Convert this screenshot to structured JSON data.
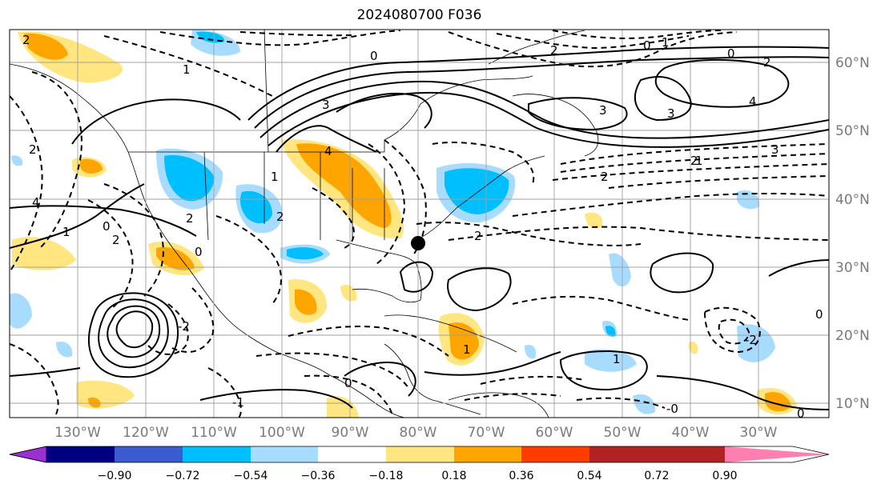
{
  "title": "2024080700 F036",
  "longitude_labels": [
    "130°W",
    "120°W",
    "110°W",
    "100°W",
    "90°W",
    "80°W",
    "70°W",
    "60°W",
    "50°W",
    "40°W",
    "30°W"
  ],
  "latitude_labels": [
    "60°N",
    "50°N",
    "40°N",
    "30°N",
    "20°N",
    "10°N"
  ],
  "colorbar": {
    "tick_labels": [
      "−0.90",
      "−0.72",
      "−0.54",
      "−0.36",
      "−0.18",
      "0.18",
      "0.36",
      "0.54",
      "0.72",
      "0.90"
    ],
    "colors": [
      "#9b30d0",
      "#000080",
      "#3b5bd0",
      "#00bfff",
      "#a8dcff",
      "#ffffff",
      "#ffe680",
      "#ffa500",
      "#ff3c00",
      "#b22222",
      "#ff80b0"
    ]
  },
  "contour_labels": [
    "2",
    "0",
    "1",
    "3",
    "2",
    "4",
    "3",
    "4",
    "3",
    "2",
    "3",
    "0",
    "1",
    "2",
    "2",
    "0",
    "1",
    "2",
    "0",
    "4",
    "1",
    "2",
    "2",
    "1",
    "0",
    "1",
    "-1",
    "0",
    "-0",
    "1",
    "-2",
    "2",
    "2",
    "0",
    "-2",
    "0"
  ],
  "colors": {
    "positive_fill_light": "#ffe680",
    "positive_fill_dark": "#ffa500",
    "negative_fill_light": "#a8dcff",
    "negative_fill_dark": "#00bfff",
    "contour": "#000000",
    "grid": "#a0a0a0",
    "tick_label": "#7a7a7a"
  }
}
